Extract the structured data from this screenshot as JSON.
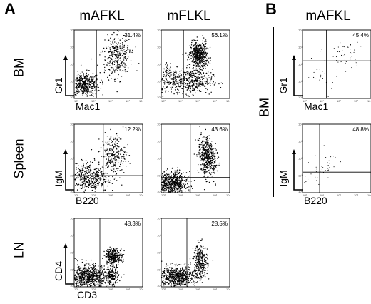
{
  "panels": {
    "A": "A",
    "B": "B"
  },
  "columns": {
    "a1": "mAFKL",
    "a2": "mFLKL",
    "b1": "mAFKL"
  },
  "rows": {
    "bm": "BM",
    "spleen": "Spleen",
    "ln": "LN",
    "b_bm": "BM"
  },
  "axes": {
    "bm": {
      "x": "Mac1",
      "y": "Gr1"
    },
    "spleen": {
      "x": "B220",
      "y": "IgM"
    },
    "ln": {
      "x": "CD3",
      "y": "CD4"
    },
    "b_bm": {
      "x": "Mac1",
      "y": "Gr1"
    },
    "b_spleen": {
      "x": "B220",
      "y": "IgM"
    }
  },
  "tick_labels": [
    "10⁰",
    "10¹",
    "10²",
    "10³",
    "10⁴"
  ],
  "chart_data": [
    {
      "type": "scatter",
      "panel": "A",
      "row": "BM",
      "column": "mAFKL",
      "xlabel": "Mac1",
      "ylabel": "Gr1",
      "xlim": [
        0,
        4
      ],
      "ylim": [
        0,
        4
      ],
      "quadrant_gate": [
        1.3,
        1.6
      ],
      "percent_label": "31.4%",
      "density": "medium",
      "clusters": [
        {
          "cx": 2.5,
          "cy": 2.5,
          "sx": 0.55,
          "sy": 0.55,
          "n": 320,
          "rot": 0.8
        },
        {
          "cx": 0.6,
          "cy": 0.8,
          "sx": 0.45,
          "sy": 0.35,
          "n": 450
        }
      ]
    },
    {
      "type": "scatter",
      "panel": "A",
      "row": "BM",
      "column": "mFLKL",
      "xlabel": "",
      "ylabel": "",
      "xlim": [
        0,
        4
      ],
      "ylim": [
        0,
        4
      ],
      "quadrant_gate": [
        1.3,
        1.6
      ],
      "percent_label": "56.1%",
      "density": "high",
      "clusters": [
        {
          "cx": 2.2,
          "cy": 2.5,
          "sx": 0.25,
          "sy": 0.4,
          "n": 550
        },
        {
          "cx": 1.8,
          "cy": 1.0,
          "sx": 0.6,
          "sy": 0.35,
          "n": 380
        },
        {
          "cx": 0.5,
          "cy": 1.2,
          "sx": 0.4,
          "sy": 0.5,
          "n": 150
        }
      ]
    },
    {
      "type": "scatter",
      "panel": "A",
      "row": "Spleen",
      "column": "mAFKL",
      "xlabel": "B220",
      "ylabel": "IgM",
      "xlim": [
        0,
        4
      ],
      "ylim": [
        0,
        4
      ],
      "quadrant_gate": [
        1.7,
        1.0
      ],
      "percent_label": "12.2%",
      "density": "medium",
      "clusters": [
        {
          "cx": 2.3,
          "cy": 2.2,
          "sx": 0.35,
          "sy": 0.6,
          "n": 250
        },
        {
          "cx": 0.8,
          "cy": 0.9,
          "sx": 0.6,
          "sy": 0.45,
          "n": 420
        }
      ]
    },
    {
      "type": "scatter",
      "panel": "A",
      "row": "Spleen",
      "column": "mFLKL",
      "xlabel": "",
      "ylabel": "",
      "xlim": [
        0,
        4
      ],
      "ylim": [
        0,
        4
      ],
      "quadrant_gate": [
        1.7,
        0.9
      ],
      "percent_label": "43.6%",
      "density": "high",
      "clusters": [
        {
          "cx": 2.7,
          "cy": 2.1,
          "sx": 0.3,
          "sy": 0.55,
          "n": 480,
          "rot": 0.7
        },
        {
          "cx": 0.6,
          "cy": 0.5,
          "sx": 0.45,
          "sy": 0.35,
          "n": 650
        }
      ]
    },
    {
      "type": "scatter",
      "panel": "A",
      "row": "LN",
      "column": "mAFKL",
      "xlabel": "CD3",
      "ylabel": "CD4",
      "xlim": [
        0,
        4
      ],
      "ylim": [
        0,
        4
      ],
      "quadrant_gate": [
        1.5,
        1.1
      ],
      "percent_label": "48.3%",
      "density": "high",
      "clusters": [
        {
          "cx": 2.3,
          "cy": 1.8,
          "sx": 0.25,
          "sy": 0.22,
          "n": 280
        },
        {
          "cx": 0.8,
          "cy": 0.6,
          "sx": 0.6,
          "sy": 0.35,
          "n": 700
        },
        {
          "cx": 2.2,
          "cy": 0.6,
          "sx": 0.2,
          "sy": 0.3,
          "n": 200
        }
      ]
    },
    {
      "type": "scatter",
      "panel": "A",
      "row": "LN",
      "column": "mFLKL",
      "xlabel": "",
      "ylabel": "",
      "xlim": [
        0,
        4
      ],
      "ylim": [
        0,
        4
      ],
      "quadrant_gate": [
        1.5,
        1.1
      ],
      "percent_label": "28.5%",
      "density": "high",
      "clusters": [
        {
          "cx": 2.3,
          "cy": 1.5,
          "sx": 0.2,
          "sy": 0.5,
          "n": 300
        },
        {
          "cx": 0.9,
          "cy": 0.6,
          "sx": 0.55,
          "sy": 0.3,
          "n": 650
        }
      ]
    },
    {
      "type": "scatter",
      "panel": "B",
      "row": "BM",
      "column": "mAFKL",
      "xlabel": "Mac1",
      "ylabel": "Gr1",
      "xlim": [
        0,
        4
      ],
      "ylim": [
        0,
        4
      ],
      "quadrant_gate": [
        1.4,
        2.2
      ],
      "percent_label": "45.4%",
      "density": "sparse",
      "clusters": [
        {
          "cx": 2.5,
          "cy": 2.6,
          "sx": 0.45,
          "sy": 0.5,
          "n": 45
        },
        {
          "cx": 1.0,
          "cy": 1.5,
          "sx": 0.6,
          "sy": 0.6,
          "n": 30
        }
      ]
    },
    {
      "type": "scatter",
      "panel": "B",
      "row": "Spleen",
      "column": "mAFKL",
      "xlabel": "B220",
      "ylabel": "IgM",
      "xlim": [
        0,
        4
      ],
      "ylim": [
        0,
        4
      ],
      "quadrant_gate": [
        1.0,
        1.2
      ],
      "percent_label": "48.8%",
      "density": "sparse",
      "clusters": [
        {
          "cx": 1.4,
          "cy": 1.6,
          "sx": 0.35,
          "sy": 0.45,
          "n": 25
        },
        {
          "cx": 0.6,
          "cy": 0.8,
          "sx": 0.4,
          "sy": 0.4,
          "n": 15
        }
      ]
    }
  ]
}
